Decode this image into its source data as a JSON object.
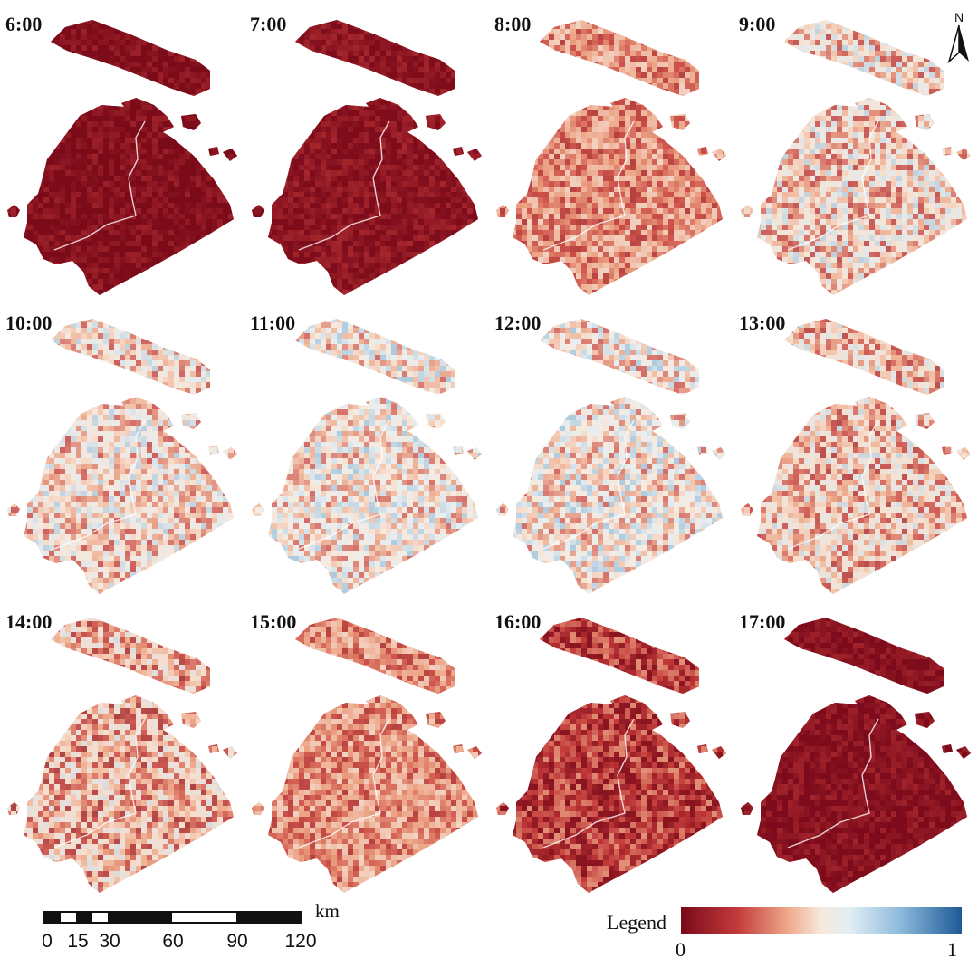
{
  "panels": [
    {
      "label": "6:00",
      "level": 0.02
    },
    {
      "label": "7:00",
      "level": 0.04
    },
    {
      "label": "8:00",
      "level": 0.3
    },
    {
      "label": "9:00",
      "level": 0.45
    },
    {
      "label": "10:00",
      "level": 0.47
    },
    {
      "label": "11:00",
      "level": 0.5
    },
    {
      "label": "12:00",
      "level": 0.5
    },
    {
      "label": "13:00",
      "level": 0.42
    },
    {
      "label": "14:00",
      "level": 0.38
    },
    {
      "label": "15:00",
      "level": 0.3
    },
    {
      "label": "16:00",
      "level": 0.15
    },
    {
      "label": "17:00",
      "level": 0.03
    }
  ],
  "north_arrow": {
    "label": "N",
    "icon": "north-arrow-icon"
  },
  "scale_bar": {
    "unit": "km",
    "ticks": [
      "0",
      "15",
      "30",
      "60",
      "90",
      "120"
    ]
  },
  "legend": {
    "title": "Legend",
    "min_label": "0",
    "max_label": "1",
    "colors": [
      "#7a0a1a",
      "#c23a3a",
      "#eea889",
      "#f7e9dd",
      "#e2eef4",
      "#8ebbdc",
      "#1e5a96"
    ]
  }
}
